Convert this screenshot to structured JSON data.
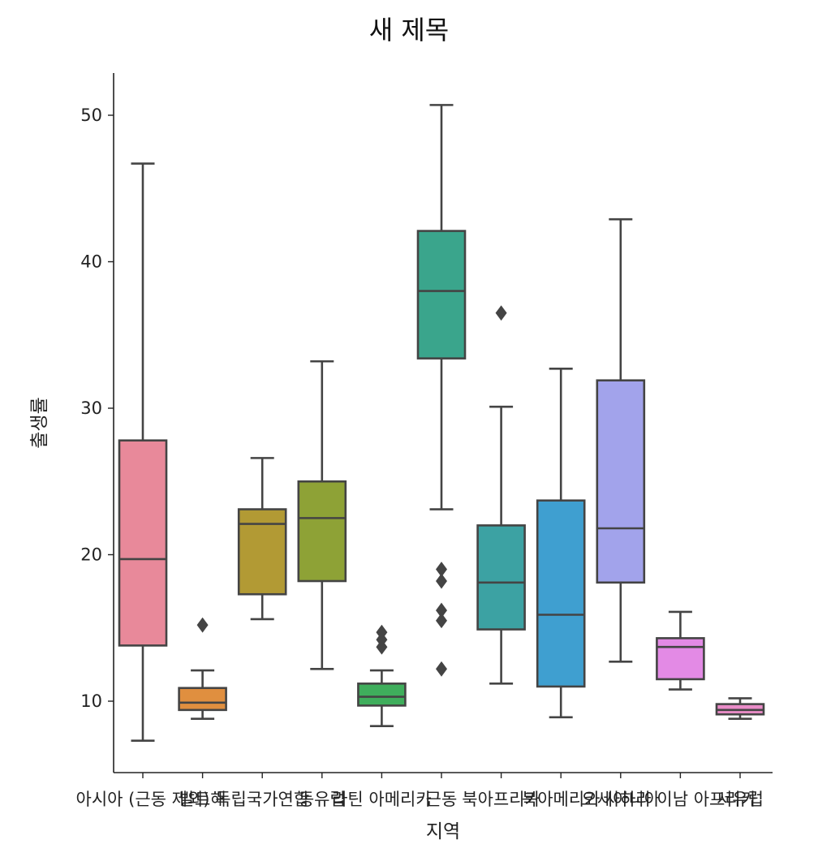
{
  "chart_data": {
    "type": "box",
    "title": "새 제목",
    "xlabel": "지역",
    "ylabel": "출생률",
    "ylim": [
      5,
      53
    ],
    "yticks": [
      10,
      20,
      30,
      40,
      50
    ],
    "grid": false,
    "categories": [
      "아시아 (근동 제외)",
      "발트해",
      "독립국가연합",
      "동유럽",
      "라틴 아메리카",
      "근동",
      "북아프리카",
      "북아메리카",
      "오세아니아",
      "사하라 이남 아프리카",
      "서유럽"
    ],
    "colors": [
      "#e8899a",
      "#e08f3f",
      "#b29a34",
      "#8ea236",
      "#3fae5c",
      "#3aa58c",
      "#3ca2a3",
      "#3f9fd0",
      "#a2a3eb",
      "#e38ae5",
      "#e98cc7"
    ],
    "boxes": [
      {
        "whisker_low": 7.3,
        "q1": 13.8,
        "median": 19.7,
        "q3": 27.8,
        "whisker_high": 46.7,
        "outliers": []
      },
      {
        "whisker_low": 8.8,
        "q1": 9.4,
        "median": 9.9,
        "q3": 10.9,
        "whisker_high": 12.1,
        "outliers": [
          15.2
        ]
      },
      {
        "whisker_low": 15.6,
        "q1": 17.3,
        "median": 22.1,
        "q3": 23.1,
        "whisker_high": 26.6,
        "outliers": []
      },
      {
        "whisker_low": 12.2,
        "q1": 18.2,
        "median": 22.5,
        "q3": 25.0,
        "whisker_high": 33.2,
        "outliers": []
      },
      {
        "whisker_low": 8.3,
        "q1": 9.7,
        "median": 10.3,
        "q3": 11.2,
        "whisker_high": 12.1,
        "outliers": [
          13.7,
          14.2,
          14.7
        ]
      },
      {
        "whisker_low": 23.1,
        "q1": 33.4,
        "median": 38.0,
        "q3": 42.1,
        "whisker_high": 50.7,
        "outliers": [
          12.2,
          15.5,
          16.2,
          18.2,
          19.0
        ]
      },
      {
        "whisker_low": 11.2,
        "q1": 14.9,
        "median": 18.1,
        "q3": 22.0,
        "whisker_high": 30.1,
        "outliers": [
          36.5
        ]
      },
      {
        "whisker_low": 8.9,
        "q1": 11.0,
        "median": 15.9,
        "q3": 23.7,
        "whisker_high": 32.7,
        "outliers": []
      },
      {
        "whisker_low": 12.7,
        "q1": 18.1,
        "median": 21.8,
        "q3": 31.9,
        "whisker_high": 42.9,
        "outliers": []
      },
      {
        "whisker_low": 10.8,
        "q1": 11.5,
        "median": 13.7,
        "q3": 14.3,
        "whisker_high": 16.1,
        "outliers": []
      },
      {
        "whisker_low": 8.8,
        "q1": 9.1,
        "median": 9.4,
        "q3": 9.8,
        "whisker_high": 10.2,
        "outliers": []
      }
    ]
  }
}
